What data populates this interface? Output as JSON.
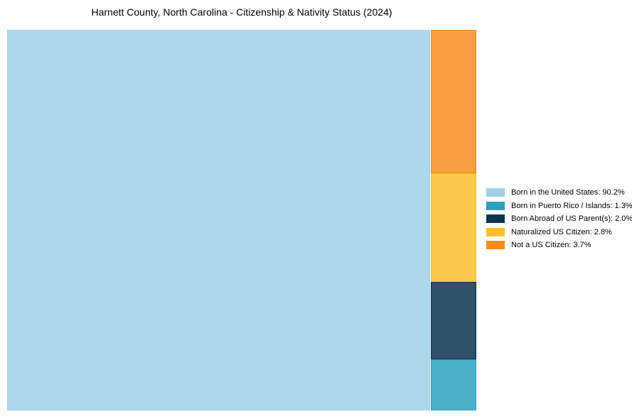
{
  "chart_data": {
    "type": "treemap",
    "title": "Harnett County, North Carolina - Citizenship & Nativity Status (2024)",
    "unit": "%",
    "total": 100.0,
    "items": [
      {
        "label": "Born in the United States",
        "value": 90.2,
        "display": "Born in the United States: 90.2%",
        "color": "#9fd0e8"
      },
      {
        "label": "Born in Puerto Rico / Islands",
        "value": 1.3,
        "display": "Born in Puerto Rico / Islands: 1.3%",
        "color": "#2aa3bf"
      },
      {
        "label": "Born Abroad of US Parent(s)",
        "value": 2.0,
        "display": "Born Abroad of US Parent(s): 2.0%",
        "color": "#0d334d"
      },
      {
        "label": "Naturalized US Citizen",
        "value": 2.8,
        "display": "Naturalized US Citizen: 2.8%",
        "color": "#fdbf2d"
      },
      {
        "label": "Not a US Citizen",
        "value": 3.7,
        "display": "Not a US Citizen: 3.7%",
        "color": "#f78d1e"
      }
    ],
    "layout": {
      "legend_position": "right-center",
      "tile_opacity": 0.85,
      "arrangement": "largest tile fills left; remaining values stacked in right column, descending top to bottom",
      "background": "#ffffff",
      "text_color": "#000000"
    }
  }
}
